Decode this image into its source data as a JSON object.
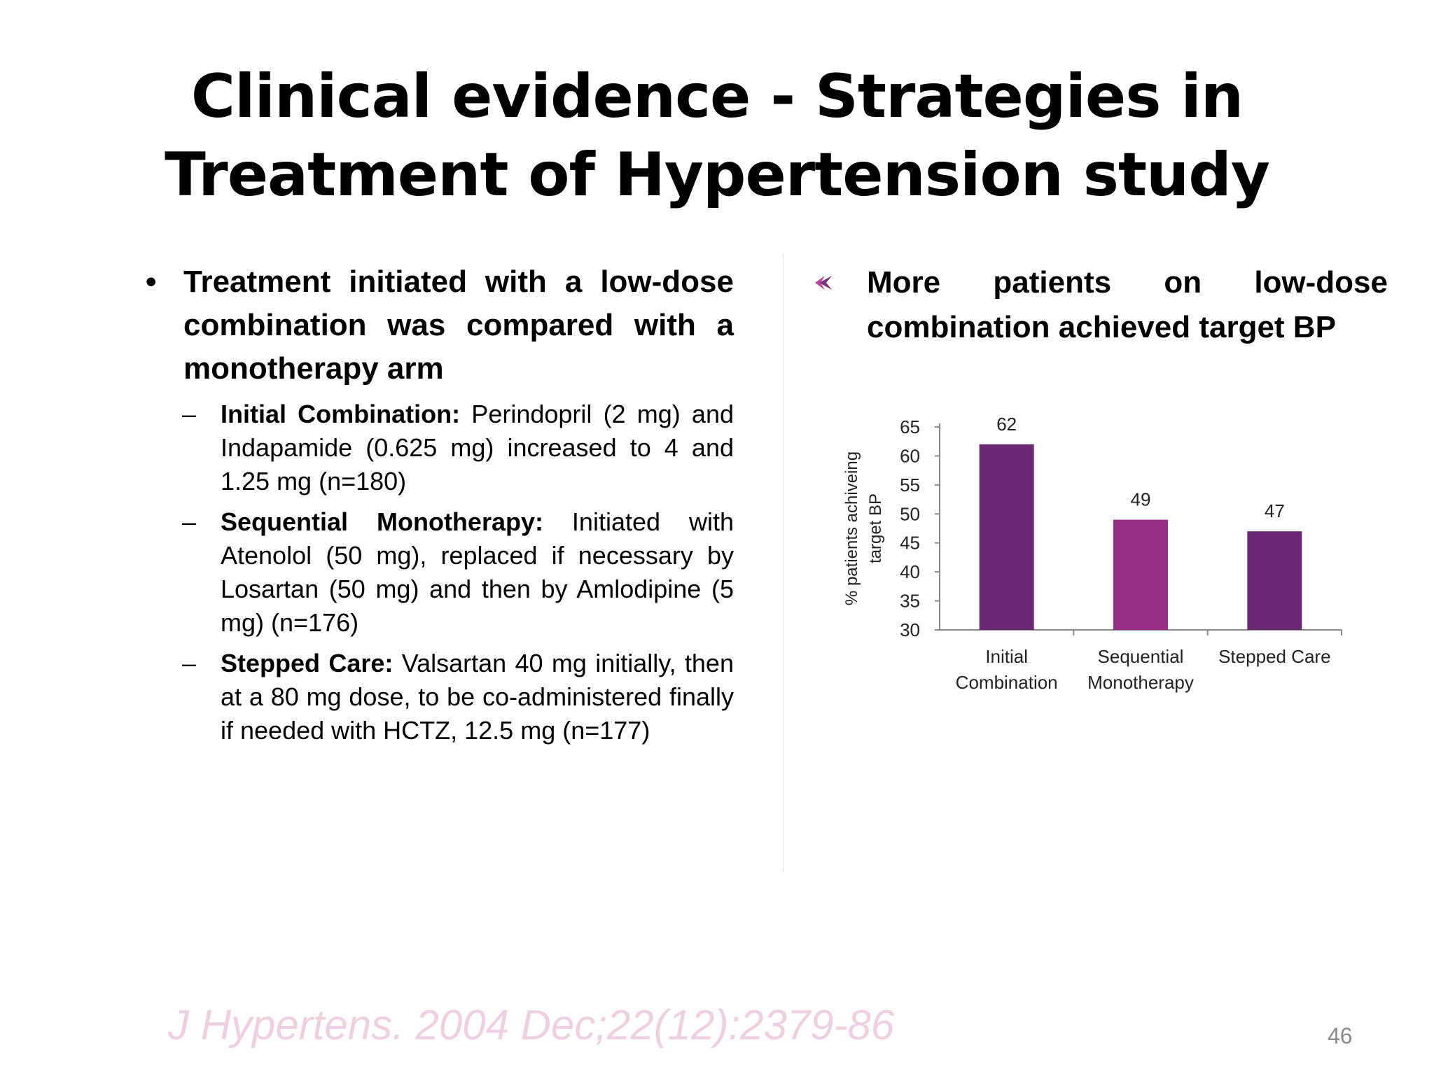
{
  "slide": {
    "title": "Clinical evidence - Strategies in Treatment of Hypertension study",
    "left": {
      "bullet": "Treatment initiated with a low-dose combination was compared with a monotherapy arm",
      "subs": [
        {
          "label": "Initial Combination:",
          "text": " Perindopril (2 mg) and Indapamide (0.625 mg) increased to 4 and 1.25 mg (n=180)"
        },
        {
          "label": "Sequential Monotherapy:",
          "text": " Initiated with Atenolol (50 mg), replaced if necessary by Losartan (50 mg) and then by Amlodipine (5 mg) (n=176)"
        },
        {
          "label": "Stepped Care:",
          "text": " Valsartan 40 mg initially, then at a 80 mg dose, to be co-administered finally if needed with HCTZ, 12.5 mg (n=177)"
        }
      ]
    },
    "right": {
      "bullet": "More patients on low-dose combination achieved target BP"
    },
    "citation": "J Hypertens. 2004 Dec;22(12):2379-86",
    "page_number": "46"
  },
  "chart_data": {
    "type": "bar",
    "categories": [
      "Initial Combination",
      "Sequential Monotherapy",
      "Stepped Care"
    ],
    "category_lines": [
      [
        "Initial",
        "Combination"
      ],
      [
        "Sequential",
        "Monotherapy"
      ],
      [
        "Stepped Care"
      ]
    ],
    "values": [
      62,
      49,
      47
    ],
    "colors": [
      "#6b2872",
      "#962f83",
      "#6b2872"
    ],
    "ylabel_lines": [
      "% patients achiveing",
      "target BP"
    ],
    "ylim": [
      30,
      65
    ],
    "yticks": [
      65,
      60,
      55,
      50,
      45,
      40,
      35,
      30
    ],
    "data_labels": true,
    "grid": false
  }
}
